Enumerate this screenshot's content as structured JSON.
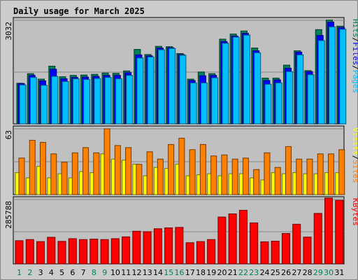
{
  "chart_data": {
    "type": "bar",
    "title": "Daily usage for March 2025",
    "categories": [
      "1",
      "2",
      "3",
      "4",
      "5",
      "6",
      "7",
      "8",
      "9",
      "10",
      "11",
      "12",
      "13",
      "14",
      "15",
      "16",
      "17",
      "18",
      "19",
      "20",
      "21",
      "22",
      "23",
      "24",
      "25",
      "26",
      "27",
      "28",
      "29",
      "30",
      "31"
    ],
    "weekend_categories": [
      "1",
      "2",
      "8",
      "9",
      "15",
      "16",
      "22",
      "23",
      "29",
      "30"
    ],
    "colors": {
      "background": "#cccccc",
      "plot_background": "#c0c0c0",
      "title": "#0000cc",
      "weekday_label": "#000000",
      "weekend_label": "#00805c",
      "hits": "#00805c",
      "files": "#0000ff",
      "pages": "#00c0ff",
      "visits": "#ffff00",
      "sites": "#ff8000",
      "kbytes": "#ff0000"
    },
    "panels": [
      {
        "id": "hits_files_pages",
        "max_label": "3032",
        "ylim": [
          0,
          3032
        ],
        "legend": [
          {
            "label": "Pages",
            "color": "#00c0ff"
          },
          {
            "label": "Files",
            "color": "#0000ff"
          },
          {
            "label": "Hits",
            "color": "#00805c"
          }
        ],
        "series": [
          {
            "name": "Hits",
            "values": [
              1190,
              1470,
              1310,
              1690,
              1380,
              1420,
              1430,
              1450,
              1490,
              1480,
              1550,
              2180,
              2030,
              2270,
              2260,
              2060,
              1310,
              1520,
              1470,
              2480,
              2630,
              2720,
              2220,
              1340,
              1340,
              1720,
              2140,
              1560,
              2760,
              3040,
              2860
            ]
          },
          {
            "name": "Files",
            "values": [
              1180,
              1420,
              1260,
              1600,
              1320,
              1360,
              1370,
              1390,
              1420,
              1420,
              1500,
              2020,
              1990,
              2220,
              2230,
              2030,
              1270,
              1410,
              1420,
              2410,
              2570,
              2650,
              2140,
              1270,
              1290,
              1630,
              2100,
              1530,
              2590,
              2980,
              2820
            ]
          },
          {
            "name": "Pages",
            "values": [
              1140,
              1360,
              1130,
              1390,
              1240,
              1320,
              1300,
              1330,
              1360,
              1320,
              1420,
              1930,
              1960,
              2170,
              2210,
              2010,
              1200,
              1200,
              1350,
              2360,
              2540,
              2600,
              2080,
              1160,
              1200,
              1530,
              2020,
              1440,
              2440,
              2840,
              2770
            ]
          }
        ]
      },
      {
        "id": "visits_sites",
        "max_label": "63",
        "ylim": [
          0,
          63
        ],
        "legend": [
          {
            "label": "Sites",
            "color": "#ff8000"
          },
          {
            "label": "Visits",
            "color": "#ffff00"
          }
        ],
        "series": [
          {
            "name": "Visits",
            "values": [
              21,
              16,
              27,
              16,
              20,
              16,
              22,
              21,
              39,
              34,
              33,
              29,
              18,
              26,
              25,
              29,
              18,
              19,
              20,
              18,
              20,
              20,
              16,
              14,
              21,
              20,
              21,
              20,
              20,
              21,
              21
            ]
          },
          {
            "name": "Sites",
            "values": [
              35,
              52,
              50,
              39,
              31,
              40,
              45,
              40,
              63,
              47,
              45,
              29,
              41,
              34,
              48,
              54,
              43,
              48,
              37,
              38,
              34,
              35,
              24,
              40,
              26,
              46,
              34,
              34,
              39,
              39,
              43
            ]
          }
        ]
      },
      {
        "id": "kbytes",
        "max_label": "285788",
        "ylim": [
          0,
          285788
        ],
        "legend": [
          {
            "label": "KBytes",
            "color": "#ff0000"
          }
        ],
        "series": [
          {
            "name": "KBytes",
            "values": [
              103000,
              108000,
              99000,
              118000,
              100000,
              112000,
              108000,
              110000,
              108000,
              112000,
              120000,
              145000,
              143000,
              156000,
              160000,
              162000,
              94000,
              99000,
              108000,
              208000,
              222000,
              238000,
              182000,
              98000,
              101000,
              135000,
              176000,
              119000,
              224000,
              292000,
              282000
            ]
          }
        ]
      }
    ]
  }
}
